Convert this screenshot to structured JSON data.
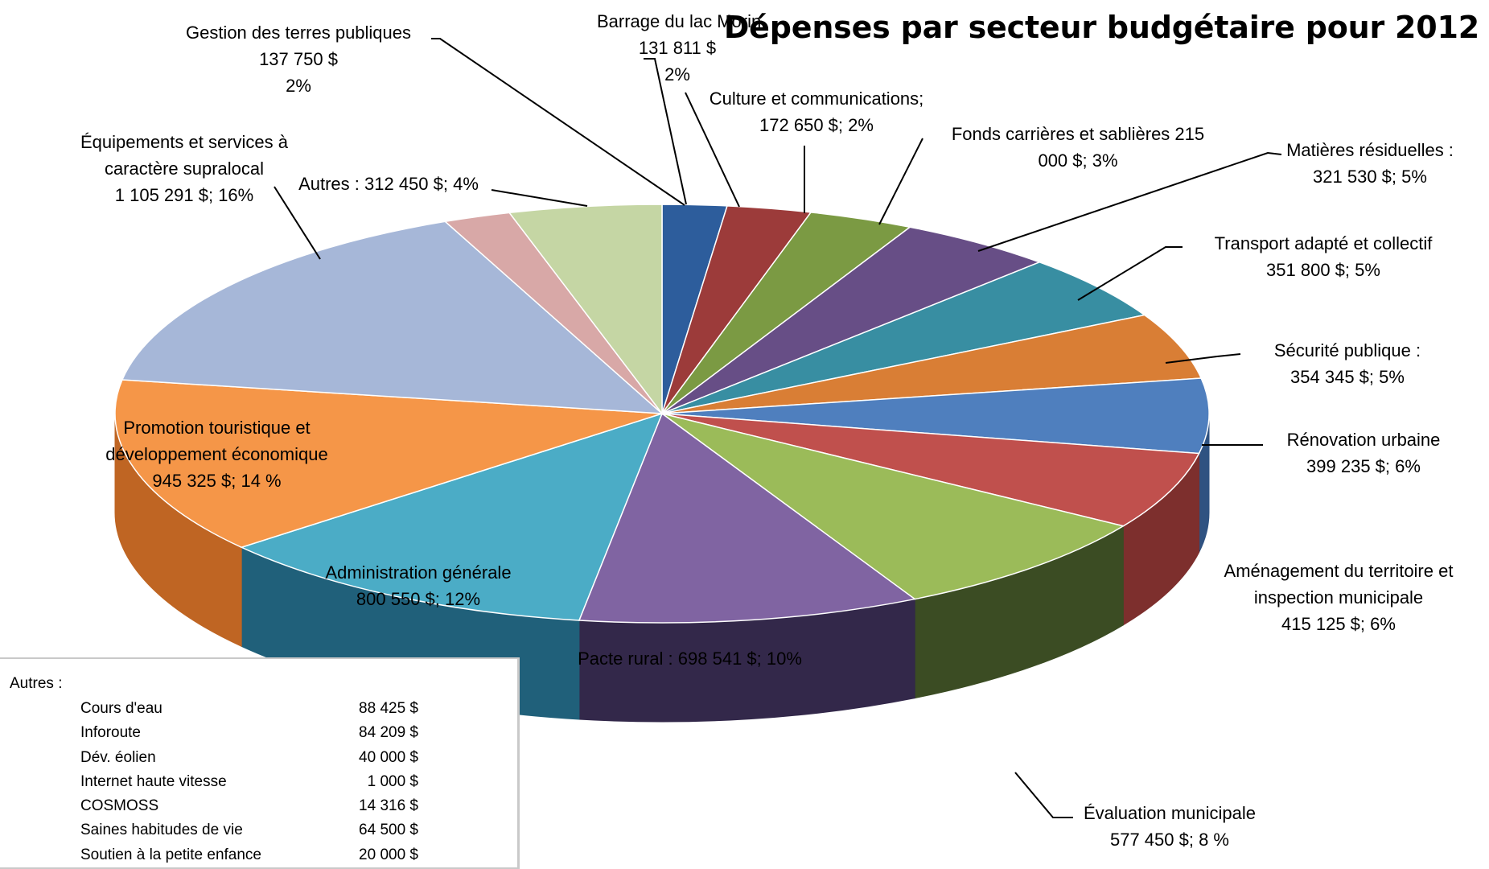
{
  "chart_data": {
    "type": "pie",
    "title": "Dépenses par secteur budgétaire pour 2012",
    "slices": [
      {
        "name": "Barrage du lac Morin",
        "value": 131811,
        "color": "#2d5d9c",
        "dark": "#1a3a66",
        "lines": [
          "Barrage du lac Morin",
          "131 811 $",
          "2%"
        ]
      },
      {
        "name": "Culture et communications",
        "value": 172650,
        "color": "#9c3b3a",
        "dark": "#632425",
        "lines": [
          "Culture et communications;",
          "172 650  $; 2%"
        ]
      },
      {
        "name": "Fonds carrières et sablières",
        "value": 215000,
        "color": "#7b9a43",
        "dark": "#4f6429",
        "lines": [
          "Fonds carrières et sablières  215",
          "000  $; 3%"
        ]
      },
      {
        "name": "Matières résiduelles",
        "value": 321530,
        "color": "#674e86",
        "dark": "#3f2f54",
        "lines": [
          "Matières résiduelles :",
          "321 530  $; 5%"
        ]
      },
      {
        "name": "Transport adapté et collectif",
        "value": 351800,
        "color": "#388ea2",
        "dark": "#215b68",
        "lines": [
          "Transport adapté et collectif",
          "351 800  $; 5%"
        ]
      },
      {
        "name": "Sécurité publique",
        "value": 354345,
        "color": "#d97e35",
        "dark": "#8f4f1c",
        "lines": [
          "Sécurité publique :",
          "354 345  $; 5%"
        ]
      },
      {
        "name": "Rénovation urbaine",
        "value": 399235,
        "color": "#4f7fbe",
        "dark": "#2f5281",
        "lines": [
          "Rénovation urbaine",
          "399 235  $; 6%"
        ]
      },
      {
        "name": "Aménagement du territoire et inspection municipale",
        "value": 415125,
        "color": "#c0504d",
        "dark": "#7d2f2d",
        "lines": [
          "Aménagement du territoire et",
          "inspection municipale",
          "415 125  $; 6%"
        ]
      },
      {
        "name": "Évaluation municipale",
        "value": 577450,
        "color": "#9bbb59",
        "dark": "#3b4c23",
        "lines": [
          "Évaluation municipale",
          "577 450  $; 8 %"
        ]
      },
      {
        "name": "Pacte rural",
        "value": 698541,
        "color": "#8064a2",
        "dark": "#33284a",
        "lines": [
          "Pacte rural :  698 541  $; 10%"
        ]
      },
      {
        "name": "Administration générale",
        "value": 800550,
        "color": "#4bacc6",
        "dark": "#20607a",
        "lines": [
          "Administration générale",
          "800 550  $; 12%"
        ]
      },
      {
        "name": "Promotion touristique et développement économique",
        "value": 945325,
        "color": "#f59648",
        "dark": "#bf6523",
        "lines": [
          "Promotion touristique et",
          "développement économique",
          "945 325  $; 14 %"
        ]
      },
      {
        "name": "Équipements et services à caractère supralocal",
        "value": 1105291,
        "color": "#a6b7d8",
        "dark": "#7e8db1",
        "lines": [
          "Équipements et services à",
          "caractère supralocal",
          "1 105 291  $; 16%"
        ]
      },
      {
        "name": "Gestion des terres publiques",
        "value": 137750,
        "color": "#d8a8a7",
        "dark": "#a67877",
        "lines": [
          "Gestion des terres publiques",
          "137 750  $",
          "2%"
        ]
      },
      {
        "name": "Autres",
        "value": 312450,
        "color": "#c5d6a4",
        "dark": "#9aab7a",
        "lines": [
          "Autres : 312 450  $; 4%"
        ]
      }
    ]
  },
  "autres_box": {
    "heading": "Autres :",
    "rows": [
      {
        "name": "Cours d'eau",
        "value": "88 425 $"
      },
      {
        "name": "Inforoute",
        "value": "84 209 $"
      },
      {
        "name": "Dév. éolien",
        "value": "40 000 $"
      },
      {
        "name": "Internet haute vitesse",
        "value": "1 000 $"
      },
      {
        "name": "COSMOSS",
        "value": "14 316 $"
      },
      {
        "name": "Saines habitudes de vie",
        "value": "64 500 $"
      },
      {
        "name": "Soutien à la petite enfance",
        "value": "20 000 $"
      }
    ]
  }
}
